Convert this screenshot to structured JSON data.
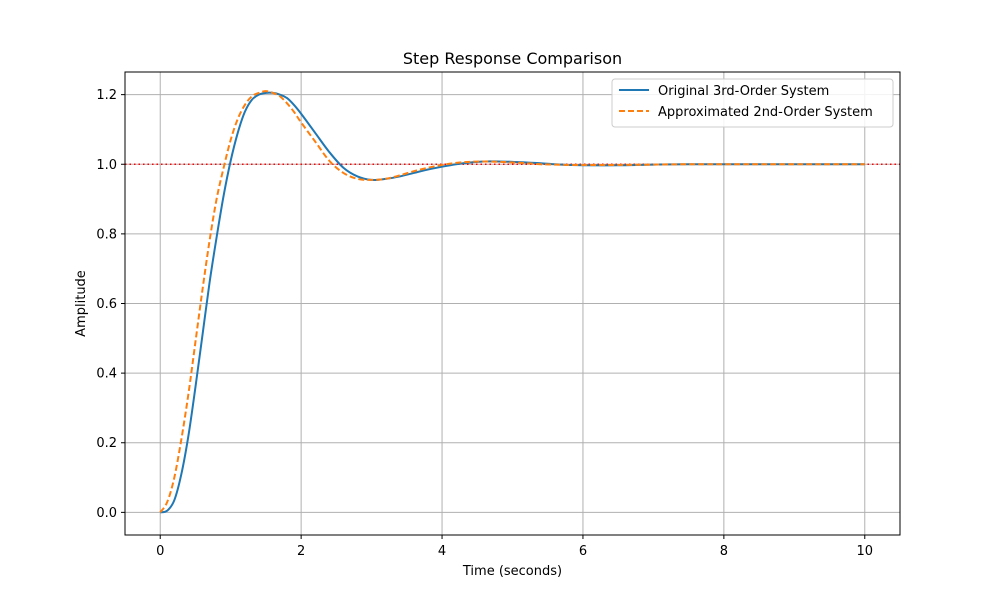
{
  "chart_data": {
    "type": "line",
    "title": "Step Response Comparison",
    "xlabel": "Time (seconds)",
    "ylabel": "Amplitude",
    "xlim": [
      -0.5,
      10.5
    ],
    "ylim": [
      -0.065,
      1.265
    ],
    "xticks": [
      0,
      2,
      4,
      6,
      8,
      10
    ],
    "yticks": [
      0.0,
      0.2,
      0.4,
      0.6,
      0.8,
      1.0,
      1.2
    ],
    "xtick_labels": [
      "0",
      "2",
      "4",
      "6",
      "8",
      "10"
    ],
    "ytick_labels": [
      "0.0",
      "0.2",
      "0.4",
      "0.6",
      "0.8",
      "1.0",
      "1.2"
    ],
    "grid": true,
    "legend_position": "top-right",
    "reference_line": {
      "y": 1.0,
      "color": "#ff0000",
      "style": "dotted"
    },
    "series": [
      {
        "name": "Original 3rd-Order System",
        "color": "#1f77b4",
        "style": "solid",
        "x": [
          0,
          0.1,
          0.2,
          0.3,
          0.4,
          0.5,
          0.6,
          0.7,
          0.8,
          0.9,
          1.0,
          1.1,
          1.2,
          1.3,
          1.4,
          1.5,
          1.6,
          1.7,
          1.8,
          1.9,
          2.0,
          2.2,
          2.4,
          2.6,
          2.8,
          3.0,
          3.2,
          3.4,
          3.6,
          3.8,
          4.0,
          4.2,
          4.4,
          4.6,
          4.8,
          5.0,
          5.2,
          5.4,
          5.6,
          5.8,
          6.0,
          6.5,
          7.0,
          7.5,
          8.0,
          8.5,
          9.0,
          9.5,
          10.0
        ],
        "y": [
          0.0,
          0.005,
          0.035,
          0.11,
          0.22,
          0.36,
          0.51,
          0.66,
          0.79,
          0.91,
          1.01,
          1.09,
          1.15,
          1.185,
          1.2,
          1.205,
          1.205,
          1.2,
          1.19,
          1.17,
          1.145,
          1.09,
          1.035,
          0.99,
          0.965,
          0.955,
          0.958,
          0.965,
          0.975,
          0.985,
          0.993,
          1.0,
          1.005,
          1.008,
          1.008,
          1.007,
          1.005,
          1.003,
          1.0,
          0.998,
          0.997,
          0.997,
          0.999,
          1.0,
          1.0,
          1.0,
          1.0,
          1.0,
          1.0
        ]
      },
      {
        "name": "Approximated 2nd-Order System",
        "color": "#ff7f0e",
        "style": "dashed",
        "x": [
          0,
          0.1,
          0.2,
          0.3,
          0.4,
          0.5,
          0.6,
          0.7,
          0.8,
          0.9,
          1.0,
          1.1,
          1.2,
          1.3,
          1.4,
          1.5,
          1.6,
          1.7,
          1.8,
          1.9,
          2.0,
          2.2,
          2.4,
          2.6,
          2.8,
          3.0,
          3.2,
          3.4,
          3.6,
          3.8,
          4.0,
          4.2,
          4.4,
          4.6,
          4.8,
          5.0,
          5.2,
          5.4,
          5.6,
          5.8,
          6.0,
          6.5,
          7.0,
          7.5,
          8.0,
          8.5,
          9.0,
          9.5,
          10.0
        ],
        "y": [
          0.0,
          0.03,
          0.1,
          0.21,
          0.34,
          0.49,
          0.64,
          0.78,
          0.9,
          0.99,
          1.07,
          1.13,
          1.17,
          1.195,
          1.205,
          1.21,
          1.205,
          1.195,
          1.175,
          1.15,
          1.12,
          1.065,
          1.01,
          0.975,
          0.958,
          0.955,
          0.958,
          0.968,
          0.98,
          0.99,
          0.998,
          1.004,
          1.007,
          1.008,
          1.007,
          1.005,
          1.003,
          1.0,
          0.999,
          0.998,
          0.998,
          0.998,
          0.999,
          1.0,
          1.0,
          1.0,
          1.0,
          1.0,
          1.0
        ]
      }
    ]
  }
}
